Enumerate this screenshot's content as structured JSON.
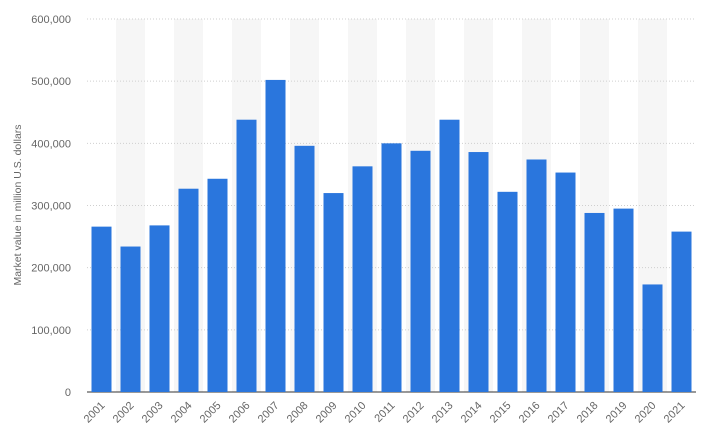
{
  "chart_data": {
    "type": "bar",
    "title": "",
    "xlabel": "",
    "ylabel": "Market value in million U.S. dollars",
    "categories": [
      "2001",
      "2002",
      "2003",
      "2004",
      "2005",
      "2006",
      "2007",
      "2008",
      "2009",
      "2010",
      "2011",
      "2012",
      "2013",
      "2014",
      "2015",
      "2016",
      "2017",
      "2018",
      "2019",
      "2020",
      "2021"
    ],
    "values": [
      266000,
      234000,
      268000,
      327000,
      343000,
      438000,
      502000,
      396000,
      320000,
      363000,
      400000,
      388000,
      438000,
      386000,
      322000,
      374000,
      353000,
      288000,
      295000,
      173000,
      258000
    ],
    "ylim": [
      0,
      600000
    ],
    "yticks": [
      0,
      100000,
      200000,
      300000,
      400000,
      500000,
      600000
    ],
    "ytick_labels": [
      "0",
      "100,000",
      "200,000",
      "300,000",
      "400,000",
      "500,000",
      "600,000"
    ],
    "grid": true,
    "legend": "none",
    "bar_color": "#2a76dd"
  }
}
